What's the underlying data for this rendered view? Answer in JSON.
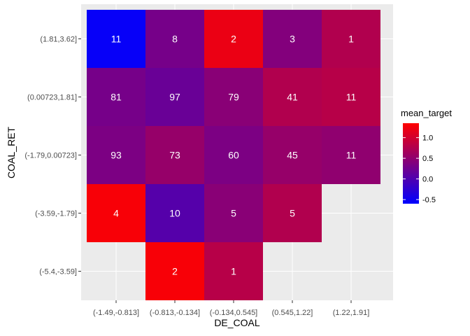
{
  "chart_data": {
    "type": "heatmap",
    "title": "",
    "xlabel": "DE_COAL",
    "ylabel": "COAL_RET",
    "x_categories": [
      "(-1.49,-0.813]",
      "(-0.813,-0.134]",
      "(-0.134,0.545]",
      "(0.545,1.22]",
      "(1.22,1.91]"
    ],
    "y_categories": [
      "(-5.4,-3.59]",
      "(-3.59,-1.79]",
      "(-1.79,0.00723]",
      "(0.00723,1.81]",
      "(1.81,3.62]"
    ],
    "cells": [
      {
        "x": "(-1.49,-0.813]",
        "y": "(1.81,3.62]",
        "count": "11",
        "mean_target": -0.55
      },
      {
        "x": "(-0.813,-0.134]",
        "y": "(1.81,3.62]",
        "count": "8",
        "mean_target": 0.3
      },
      {
        "x": "(-0.134,0.545]",
        "y": "(1.81,3.62]",
        "count": "2",
        "mean_target": 1.2
      },
      {
        "x": "(0.545,1.22]",
        "y": "(1.81,3.62]",
        "count": "3",
        "mean_target": 0.4
      },
      {
        "x": "(1.22,1.91]",
        "y": "(1.81,3.62]",
        "count": "1",
        "mean_target": 0.75
      },
      {
        "x": "(-1.49,-0.813]",
        "y": "(0.00723,1.81]",
        "count": "81",
        "mean_target": 0.3
      },
      {
        "x": "(-0.813,-0.134]",
        "y": "(0.00723,1.81]",
        "count": "97",
        "mean_target": 0.2
      },
      {
        "x": "(-0.134,0.545]",
        "y": "(0.00723,1.81]",
        "count": "79",
        "mean_target": 0.45
      },
      {
        "x": "(0.545,1.22]",
        "y": "(0.00723,1.81]",
        "count": "41",
        "mean_target": 0.75
      },
      {
        "x": "(1.22,1.91]",
        "y": "(0.00723,1.81]",
        "count": "11",
        "mean_target": 0.8
      },
      {
        "x": "(-1.49,-0.813]",
        "y": "(-1.79,0.00723]",
        "count": "93",
        "mean_target": 0.35
      },
      {
        "x": "(-0.813,-0.134]",
        "y": "(-1.79,0.00723]",
        "count": "73",
        "mean_target": 0.55
      },
      {
        "x": "(-0.134,0.545]",
        "y": "(-1.79,0.00723]",
        "count": "60",
        "mean_target": 0.35
      },
      {
        "x": "(0.545,1.22]",
        "y": "(-1.79,0.00723]",
        "count": "45",
        "mean_target": 0.55
      },
      {
        "x": "(1.22,1.91]",
        "y": "(-1.79,0.00723]",
        "count": "11",
        "mean_target": 0.5
      },
      {
        "x": "(-1.49,-0.813]",
        "y": "(-3.59,-1.79]",
        "count": "4",
        "mean_target": 1.3
      },
      {
        "x": "(-0.813,-0.134]",
        "y": "(-3.59,-1.79]",
        "count": "10",
        "mean_target": 0.05
      },
      {
        "x": "(-0.134,0.545]",
        "y": "(-3.59,-1.79]",
        "count": "5",
        "mean_target": 0.45
      },
      {
        "x": "(0.545,1.22]",
        "y": "(-3.59,-1.79]",
        "count": "5",
        "mean_target": 0.75
      },
      {
        "x": "(-0.813,-0.134]",
        "y": "(-5.4,-3.59]",
        "count": "2",
        "mean_target": 1.3
      },
      {
        "x": "(-0.134,0.545]",
        "y": "(-5.4,-3.59]",
        "count": "1",
        "mean_target": 0.8
      }
    ],
    "legend": {
      "title": "mean_target",
      "placement": "right",
      "min": -0.6,
      "max": 1.35,
      "ticks": [
        {
          "value": 1.0,
          "label": "1.0"
        },
        {
          "value": 0.5,
          "label": "0.5"
        },
        {
          "value": 0.0,
          "label": "0.0"
        },
        {
          "value": -0.5,
          "label": "-0.5"
        }
      ],
      "low_color": "#0000ff",
      "high_color": "#ff0000"
    },
    "panel_background": "#ebebeb",
    "grid": true
  }
}
